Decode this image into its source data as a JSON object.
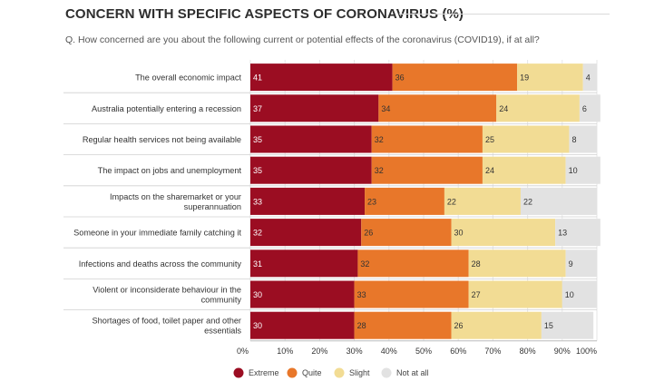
{
  "header": {
    "title": "CONCERN WITH SPECIFIC ASPECTS OF CORONAVIRUS (%)",
    "question": "Q. How concerned are you about the following current or potential effects of the coronavirus (COVID19), if at all?"
  },
  "chart_data": {
    "type": "bar",
    "orientation": "horizontal",
    "stacked": true,
    "title": "CONCERN WITH SPECIFIC ASPECTS OF CORONAVIRUS (%)",
    "categories": [
      [
        "The overall economic impact"
      ],
      [
        "Australia potentially entering a recession"
      ],
      [
        "Regular health services not being available"
      ],
      [
        "The impact on jobs and unemployment"
      ],
      [
        "Impacts on the sharemarket or your",
        "superannuation"
      ],
      [
        "Someone in your immediate family catching it"
      ],
      [
        "Infections and deaths across the community"
      ],
      [
        "Violent or inconsiderate behaviour in the",
        "community"
      ],
      [
        "Shortages of food, toilet paper and other",
        "essentials"
      ]
    ],
    "series": [
      {
        "name": "Extreme",
        "color": "#9b0d22",
        "values": [
          41,
          37,
          35,
          35,
          33,
          32,
          31,
          30,
          30
        ]
      },
      {
        "name": "Quite",
        "color": "#e8772a",
        "values": [
          36,
          34,
          32,
          32,
          23,
          26,
          32,
          33,
          28
        ]
      },
      {
        "name": "Slight",
        "color": "#f2dc94",
        "values": [
          19,
          24,
          25,
          24,
          22,
          30,
          28,
          27,
          26
        ]
      },
      {
        "name": "Not at all",
        "color": "#e2e2e2",
        "values": [
          4,
          6,
          8,
          10,
          22,
          13,
          9,
          10,
          15
        ]
      }
    ],
    "xlim": [
      0,
      100
    ],
    "xticks": [
      "0%",
      "10%",
      "20%",
      "30%",
      "40%",
      "50%",
      "60%",
      "70%",
      "80%",
      "90%",
      "100%"
    ],
    "legend_position": "bottom",
    "grid": "vertical"
  }
}
